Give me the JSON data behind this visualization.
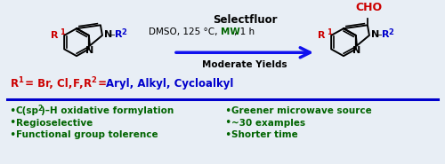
{
  "bg_color": "#e8eef5",
  "border_color": "#aaaaaa",
  "divider_color": "#0000cc",
  "title_reagent": "Selectfluor",
  "conditions_pre": "DMSO, 125 °C, ",
  "mw_text": "MW",
  "conditions_post": ", 1 h",
  "moderate": "Moderate Yields",
  "dark_green": "#006400",
  "red": "#cc0000",
  "blue": "#0000cc",
  "black": "#000000",
  "arrow_color": "#1111ee",
  "bullet_left": [
    "C(sp²)–H oxidative formylation",
    "Regioselective",
    "Functional group tolerence"
  ],
  "bullet_right": [
    "Greener microwave source",
    "~30 examples",
    "Shorter time"
  ]
}
